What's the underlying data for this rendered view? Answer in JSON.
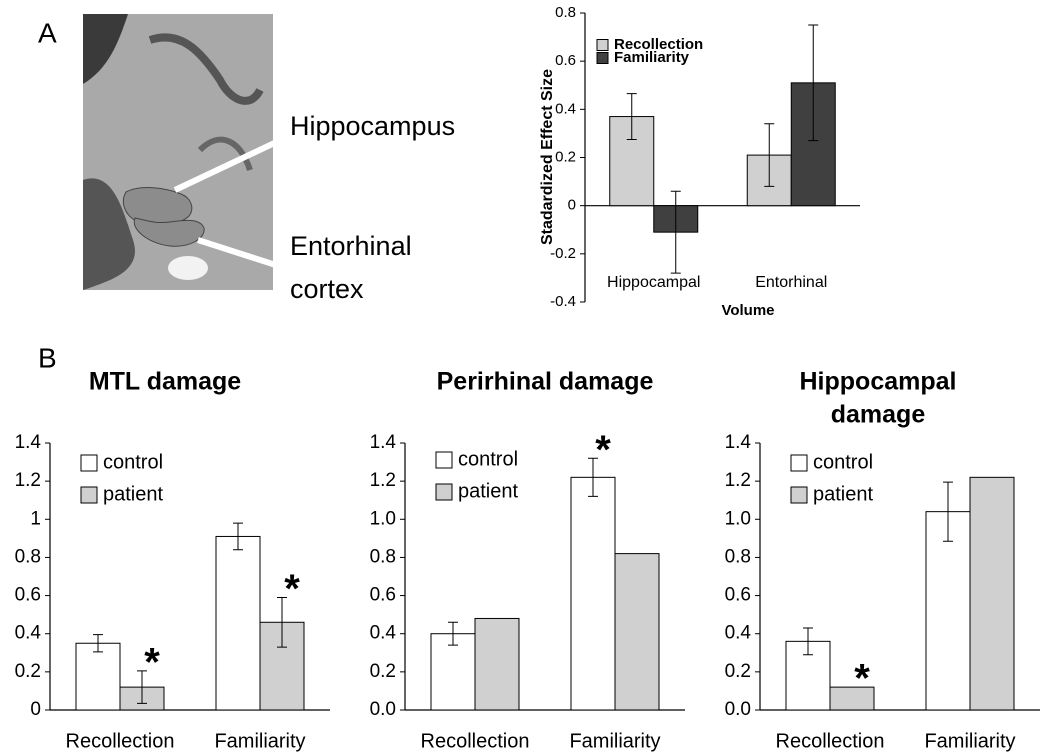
{
  "figure": {
    "panel_labels": [
      "A",
      "B"
    ],
    "image_labels": [
      "Hippocampus",
      "Entorhinal",
      "cortex"
    ]
  },
  "chart_data": [
    {
      "type": "bar",
      "y_label": "Stadardized Effect Size",
      "x_label": "Volume",
      "categories": [
        "Hippocampal",
        "Entorhinal"
      ],
      "series": [
        {
          "name": "Recollection",
          "color": "#d0d0d0",
          "values": [
            0.37,
            0.21
          ],
          "errors": [
            0.095,
            0.13
          ]
        },
        {
          "name": "Familiarity",
          "color": "#404040",
          "values": [
            -0.11,
            0.51
          ],
          "errors": [
            0.17,
            0.24
          ]
        }
      ],
      "ylim": [
        -0.4,
        0.8
      ],
      "yticks": [
        -0.4,
        -0.2,
        0,
        0.2,
        0.4,
        0.6,
        0.8
      ],
      "legend": "upper left"
    },
    {
      "type": "bar",
      "title": [
        "MTL damage"
      ],
      "categories": [
        "Recollection",
        "Familiarity"
      ],
      "series": [
        {
          "name": "control",
          "color": "#ffffff",
          "values": [
            0.35,
            0.91
          ],
          "errors": [
            0.045,
            0.07
          ]
        },
        {
          "name": "patient",
          "color": "#d0d0d0",
          "values": [
            0.12,
            0.46
          ],
          "errors": [
            0.085,
            0.13
          ]
        }
      ],
      "annotations": [
        "*",
        "*"
      ],
      "ylim": [
        0,
        1.4
      ],
      "yticks": [
        0,
        0.2,
        0.4,
        0.6,
        0.8,
        1,
        1.2,
        1.4
      ],
      "legend": "upper left"
    },
    {
      "type": "bar",
      "title": [
        "Perirhinal damage"
      ],
      "categories": [
        "Recollection",
        "Familiarity"
      ],
      "series": [
        {
          "name": "control",
          "color": "#ffffff",
          "values": [
            0.4,
            1.22
          ],
          "errors": [
            0.06,
            0.1
          ]
        },
        {
          "name": "patient",
          "color": "#d0d0d0",
          "values": [
            0.48,
            0.82
          ],
          "errors": [
            null,
            null
          ]
        }
      ],
      "annotations": [
        "*"
      ],
      "ylim": [
        0,
        1.4
      ],
      "yticks": [
        {
          "value": 0,
          "label": "0.0"
        },
        0.2,
        0.4,
        0.6,
        0.8,
        {
          "value": 1,
          "label": "1.0"
        },
        1.2,
        1.4
      ],
      "legend": "upper left"
    },
    {
      "type": "bar",
      "title": [
        "Hippocampal",
        "damage"
      ],
      "categories": [
        "Recollection",
        "Familiarity"
      ],
      "series": [
        {
          "name": "control",
          "color": "#ffffff",
          "values": [
            0.36,
            1.04
          ],
          "errors": [
            0.07,
            0.155
          ]
        },
        {
          "name": "patient",
          "color": "#d0d0d0",
          "values": [
            0.12,
            1.22
          ],
          "errors": [
            null,
            null
          ]
        }
      ],
      "annotations": [
        "*"
      ],
      "ylim": [
        0,
        1.4
      ],
      "yticks": [
        {
          "value": 0,
          "label": "0.0"
        },
        0.2,
        0.4,
        0.6,
        0.8,
        {
          "value": 1,
          "label": "1.0"
        },
        1.2,
        1.4
      ],
      "legend": "upper left"
    }
  ]
}
